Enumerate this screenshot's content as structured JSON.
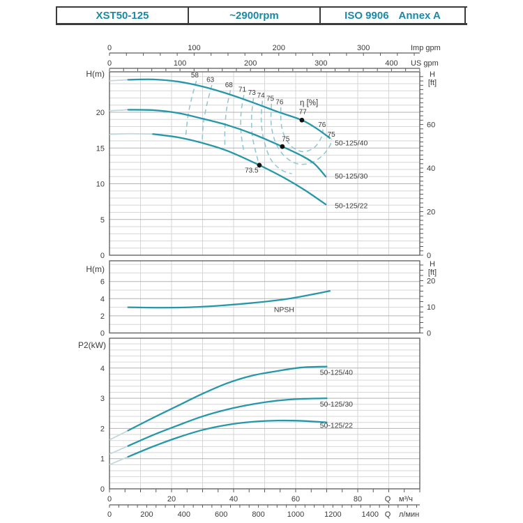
{
  "header": {
    "model": "XST50-125",
    "speed": "~2900rpm",
    "standard_left": "ISO 9906",
    "standard_right": "Annex A"
  },
  "colors": {
    "curve": "#2697a9",
    "dash": "#8fc6d2",
    "pale": "#c3d8dc",
    "grid": "#d6d6d6",
    "grid_major": "#b2b2b2",
    "frame": "#58595b",
    "text": "#3a3a3a",
    "accent": "#1b89a5",
    "dot": "#111111"
  },
  "axes": {
    "imp_gpm": {
      "label": "Imp gpm",
      "ticks": [
        0,
        100,
        200,
        300
      ]
    },
    "us_gpm": {
      "label": "US gpm",
      "ticks": [
        0,
        100,
        200,
        300,
        400
      ]
    },
    "m3h": {
      "q": "Q",
      "label": "м³/ч",
      "ticks": [
        0,
        20,
        40,
        60,
        80
      ]
    },
    "lmin": {
      "q": "Q",
      "label": "л/мин",
      "ticks": [
        0,
        200,
        400,
        600,
        800,
        1000,
        1200,
        1400
      ]
    }
  },
  "chart_data": [
    {
      "id": "head",
      "type": "line",
      "ylabel_left": "H(m)",
      "ylabel_right_1": "H",
      "ylabel_right_2": "[ft]",
      "y_ticks_left": [
        20,
        15,
        10,
        5,
        0
      ],
      "y_ticks_right_ft": [
        60,
        40,
        20,
        0
      ],
      "x_range_m3h": [
        0,
        100
      ],
      "y_range_m": [
        0,
        25.6
      ],
      "series": [
        {
          "name": "50-125/40",
          "pale_until": 6,
          "label_at": [
            72.6,
            15.35
          ],
          "points": [
            [
              0,
              24.4
            ],
            [
              6,
              24.55
            ],
            [
              14,
              24.6
            ],
            [
              22,
              24.3
            ],
            [
              30,
              23.6
            ],
            [
              38,
              22.6
            ],
            [
              46,
              21.4
            ],
            [
              54,
              20.1
            ],
            [
              62,
              18.9
            ],
            [
              66.5,
              17.8
            ],
            [
              71,
              16.4
            ]
          ]
        },
        {
          "name": "50-125/30",
          "pale_until": 6,
          "label_at": [
            72.6,
            10.75
          ],
          "points": [
            [
              0,
              20.2
            ],
            [
              6,
              20.35
            ],
            [
              14,
              20.3
            ],
            [
              22,
              19.9
            ],
            [
              30,
              19.1
            ],
            [
              38,
              18.2
            ],
            [
              46,
              17.0
            ],
            [
              55.7,
              15.2
            ],
            [
              62,
              13.9
            ],
            [
              66,
              12.8
            ],
            [
              69.7,
              11.0
            ]
          ]
        },
        {
          "name": "50-125/22",
          "pale_until": 7,
          "label_at": [
            72.6,
            6.6
          ],
          "points": [
            [
              0,
              16.9
            ],
            [
              6,
              17.0
            ],
            [
              14,
              16.95
            ],
            [
              22,
              16.5
            ],
            [
              30,
              15.7
            ],
            [
              38,
              14.6
            ],
            [
              48.3,
              12.6
            ],
            [
              56,
              10.9
            ],
            [
              63,
              9.1
            ],
            [
              69.7,
              7.1
            ]
          ]
        }
      ],
      "efficiency": {
        "title": "η [%]",
        "title_at": [
          64.3,
          21.0
        ],
        "labels": [
          {
            "t": "58",
            "at": [
              27.5,
              24.9
            ]
          },
          {
            "t": "63",
            "at": [
              32.5,
              24.25
            ]
          },
          {
            "t": "68",
            "at": [
              38.5,
              23.5
            ]
          },
          {
            "t": "71",
            "at": [
              42.8,
              22.9
            ]
          },
          {
            "t": "73",
            "at": [
              45.9,
              22.45
            ]
          },
          {
            "t": "74",
            "at": [
              48.8,
              22.05
            ]
          },
          {
            "t": "75",
            "at": [
              51.8,
              21.6
            ]
          },
          {
            "t": "76",
            "at": [
              54.8,
              21.1
            ]
          },
          {
            "t": "77",
            "at": [
              62.3,
              19.75
            ]
          },
          {
            "t": "76",
            "at": [
              68.5,
              17.95
            ]
          },
          {
            "t": "75",
            "at": [
              71.5,
              16.6
            ]
          },
          {
            "t": "75",
            "at": [
              56.8,
              15.95
            ]
          },
          {
            "t": "73.5",
            "at": [
              45.8,
              11.55
            ]
          }
        ],
        "contours": [
          {
            "eta": 58,
            "pts": [
              [
                28,
                24.4
              ],
              [
                26.5,
                22.0
              ],
              [
                25.3,
                19.5
              ],
              [
                24.6,
                16.8
              ]
            ]
          },
          {
            "eta": 63,
            "pts": [
              [
                33,
                23.8
              ],
              [
                31.5,
                21.3
              ],
              [
                30.3,
                18.6
              ],
              [
                29.9,
                16.0
              ]
            ]
          },
          {
            "eta": 68,
            "pts": [
              [
                39,
                23.1
              ],
              [
                37.8,
                20.6
              ],
              [
                37.2,
                17.8
              ],
              [
                37.2,
                15.0
              ]
            ]
          },
          {
            "eta": 71,
            "pts": [
              [
                43.3,
                22.4
              ],
              [
                42.4,
                19.9
              ],
              [
                42.4,
                17.1
              ],
              [
                43.4,
                14.3
              ]
            ]
          },
          {
            "eta": 73,
            "pts": [
              [
                46.4,
                22.0
              ],
              [
                45.8,
                19.4
              ],
              [
                46.1,
                16.5
              ],
              [
                47.7,
                13.5
              ],
              [
                48.5,
                12.2
              ]
            ]
          },
          {
            "eta": 74,
            "pts": [
              [
                49.3,
                21.6
              ],
              [
                48.9,
                19.0
              ],
              [
                49.7,
                16.2
              ],
              [
                52.0,
                13.4
              ],
              [
                55.5,
                11.9
              ],
              [
                58.8,
                11.4
              ]
            ]
          },
          {
            "eta": 75,
            "pts": [
              [
                52.2,
                21.2
              ],
              [
                52.1,
                18.4
              ],
              [
                53.4,
                15.9
              ],
              [
                56.3,
                13.9
              ],
              [
                60.5,
                12.8
              ],
              [
                64.8,
                12.9
              ],
              [
                68.5,
                13.9
              ],
              [
                71.0,
                15.3
              ],
              [
                71.6,
                16.3
              ]
            ]
          },
          {
            "eta": 76,
            "pts": [
              [
                55.2,
                20.7
              ],
              [
                55.4,
                18.2
              ],
              [
                56.9,
                16.2
              ],
              [
                59.6,
                14.9
              ],
              [
                63.0,
                14.5
              ],
              [
                66.3,
                15.2
              ],
              [
                68.4,
                16.6
              ],
              [
                68.8,
                17.6
              ]
            ]
          }
        ],
        "duty_dots": [
          [
            62,
            18.9
          ],
          [
            55.7,
            15.2
          ],
          [
            48.3,
            12.6
          ]
        ]
      }
    },
    {
      "id": "npsh",
      "type": "line",
      "ylabel_left": "H(m)",
      "ylabel_right_1": "H",
      "ylabel_right_2": "[ft]",
      "y_ticks_left": [
        6,
        4,
        2,
        0
      ],
      "y_ticks_right_ft": [
        20,
        10,
        0
      ],
      "x_range_m3h": [
        0,
        100
      ],
      "y_range_m": [
        0,
        8.4
      ],
      "series": [
        {
          "name": "NPSH",
          "label_at": [
            53,
            2.42
          ],
          "points": [
            [
              6,
              3.0
            ],
            [
              16,
              2.95
            ],
            [
              26,
              3.0
            ],
            [
              36,
              3.2
            ],
            [
              46,
              3.5
            ],
            [
              56,
              3.9
            ],
            [
              64,
              4.4
            ],
            [
              71,
              4.9
            ]
          ]
        }
      ]
    },
    {
      "id": "power",
      "type": "line",
      "ylabel_left": "P2(kW)",
      "y_ticks_left": [
        4,
        3,
        2,
        1,
        0
      ],
      "x_range_m3h": [
        0,
        100
      ],
      "y_range_kw": [
        0,
        5.0
      ],
      "series": [
        {
          "name": "50-125/40",
          "pale_until": 6,
          "label_at": [
            67.8,
            3.78
          ],
          "points": [
            [
              0,
              1.62
            ],
            [
              6,
              1.93
            ],
            [
              14,
              2.35
            ],
            [
              22,
              2.75
            ],
            [
              30,
              3.15
            ],
            [
              38,
              3.5
            ],
            [
              46,
              3.75
            ],
            [
              54,
              3.9
            ],
            [
              62,
              4.02
            ],
            [
              70,
              4.05
            ]
          ]
        },
        {
          "name": "50-125/30",
          "pale_until": 6,
          "label_at": [
            67.8,
            2.73
          ],
          "points": [
            [
              0,
              1.15
            ],
            [
              6,
              1.42
            ],
            [
              14,
              1.78
            ],
            [
              22,
              2.1
            ],
            [
              30,
              2.4
            ],
            [
              38,
              2.63
            ],
            [
              46,
              2.8
            ],
            [
              54,
              2.92
            ],
            [
              62,
              2.98
            ],
            [
              70,
              3.0
            ]
          ]
        },
        {
          "name": "50-125/22",
          "pale_until": 6,
          "label_at": [
            67.8,
            2.02
          ],
          "points": [
            [
              0,
              0.8
            ],
            [
              6,
              1.06
            ],
            [
              14,
              1.4
            ],
            [
              22,
              1.7
            ],
            [
              30,
              1.95
            ],
            [
              38,
              2.12
            ],
            [
              46,
              2.22
            ],
            [
              54,
              2.26
            ],
            [
              62,
              2.25
            ],
            [
              70,
              2.2
            ]
          ]
        }
      ]
    }
  ]
}
